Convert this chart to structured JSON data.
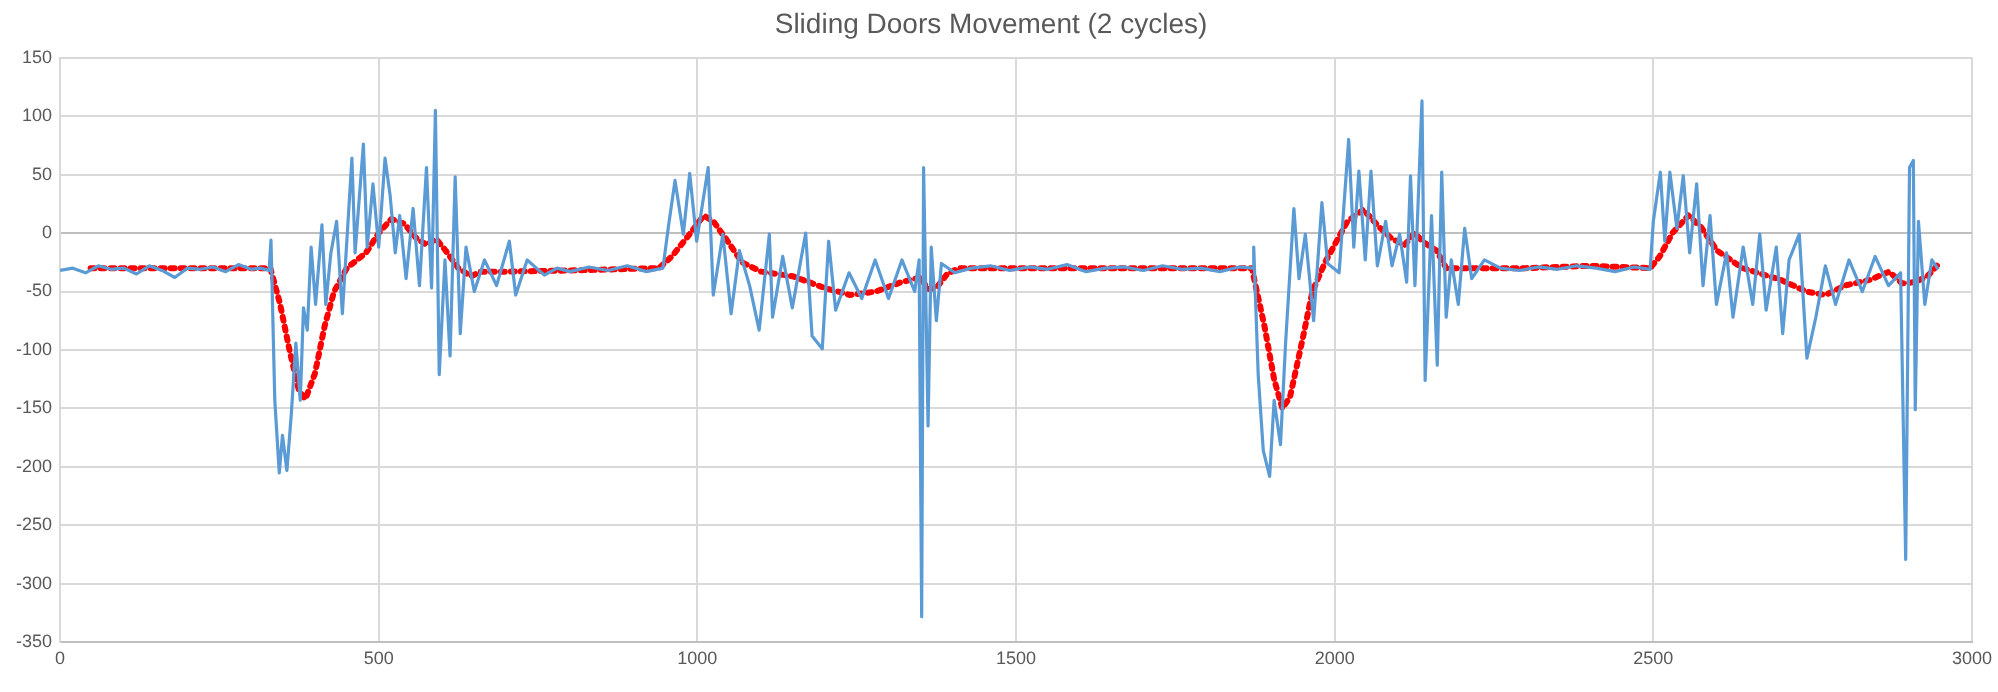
{
  "chart_data": {
    "type": "line",
    "title": "Sliding Doors Movement (2 cycles)",
    "xlim": [
      0,
      3000
    ],
    "xticks": [
      0,
      500,
      1000,
      1500,
      2000,
      2500,
      3000
    ],
    "ylim": [
      -350,
      150
    ],
    "yticks": [
      -350,
      -300,
      -250,
      -200,
      -150,
      -100,
      -50,
      0,
      50,
      100,
      150
    ],
    "grid": true,
    "legend": false,
    "marker": "none",
    "series": [
      {
        "color": "#5b9bd5",
        "line_style": "solid",
        "x": [
          0,
          20,
          40,
          60,
          80,
          100,
          120,
          140,
          160,
          180,
          200,
          220,
          240,
          260,
          280,
          300,
          315,
          328,
          331,
          337,
          344,
          349,
          356,
          363,
          370,
          377,
          382,
          388,
          394,
          401,
          411,
          417,
          425,
          434,
          443,
          450,
          458,
          463,
          476,
          482,
          491,
          500,
          510,
          518,
          526,
          533,
          543,
          554,
          564,
          575,
          583,
          589,
          595,
          604,
          612,
          620,
          628,
          637,
          650,
          666,
          685,
          705,
          715,
          733,
          760,
          780,
          800,
          830,
          860,
          890,
          920,
          946,
          955,
          965,
          978,
          988,
          999,
          1017,
          1025,
          1040,
          1053,
          1066,
          1082,
          1097,
          1113,
          1118,
          1134,
          1149,
          1170,
          1180,
          1196,
          1206,
          1217,
          1238,
          1258,
          1279,
          1300,
          1321,
          1341,
          1348,
          1352,
          1355,
          1362,
          1367,
          1375,
          1383,
          1404,
          1430,
          1460,
          1490,
          1520,
          1550,
          1580,
          1610,
          1640,
          1670,
          1700,
          1730,
          1760,
          1790,
          1820,
          1850,
          1871,
          1873,
          1880,
          1888,
          1898,
          1905,
          1915,
          1923,
          1936,
          1944,
          1954,
          1967,
          1980,
          1989,
          2007,
          2022,
          2030,
          2038,
          2048,
          2057,
          2067,
          2080,
          2090,
          2102,
          2113,
          2119,
          2126,
          2137,
          2142,
          2152,
          2161,
          2168,
          2175,
          2183,
          2194,
          2204,
          2215,
          2235,
          2260,
          2290,
          2320,
          2350,
          2380,
          2410,
          2440,
          2470,
          2495,
          2500,
          2511,
          2518,
          2526,
          2537,
          2547,
          2557,
          2568,
          2578,
          2589,
          2599,
          2615,
          2625,
          2641,
          2656,
          2667,
          2677,
          2693,
          2703,
          2713,
          2729,
          2741,
          2755,
          2770,
          2786,
          2807,
          2828,
          2848,
          2869,
          2888,
          2896,
          2902,
          2908,
          2911,
          2916,
          2926,
          2937,
          2947
        ],
        "values": [
          -32,
          -30,
          -34,
          -28,
          -31,
          -30,
          -35,
          -28,
          -32,
          -38,
          -30,
          -31,
          -29,
          -33,
          -27,
          -31,
          -30,
          -32,
          -6,
          -143,
          -205,
          -173,
          -203,
          -154,
          -94,
          -143,
          -64,
          -83,
          -12,
          -61,
          7,
          -61,
          -17,
          10,
          -69,
          -7,
          64,
          -17,
          76,
          -12,
          42,
          -12,
          64,
          32,
          -17,
          15,
          -39,
          21,
          -45,
          56,
          -47,
          105,
          -121,
          -23,
          -105,
          48,
          -86,
          -12,
          -50,
          -23,
          -45,
          -7,
          -53,
          -23,
          -36,
          -30,
          -33,
          -29,
          -32,
          -28,
          -33,
          -30,
          7,
          45,
          -1,
          51,
          -7,
          56,
          -53,
          -1,
          -69,
          -15,
          -45,
          -83,
          -1,
          -72,
          -20,
          -64,
          0,
          -88,
          -99,
          -7,
          -66,
          -34,
          -56,
          -23,
          -56,
          -23,
          -50,
          -23,
          -328,
          56,
          -165,
          -12,
          -75,
          -26,
          -34,
          -30,
          -28,
          -32,
          -29,
          -31,
          -27,
          -33,
          -30,
          -29,
          -32,
          -28,
          -31,
          -30,
          -33,
          -29,
          -30,
          -12,
          -121,
          -186,
          -208,
          -143,
          -181,
          -94,
          21,
          -39,
          -1,
          -75,
          26,
          -26,
          -34,
          80,
          -12,
          53,
          -23,
          53,
          -28,
          10,
          -28,
          -1,
          -42,
          49,
          -45,
          113,
          -126,
          15,
          -113,
          52,
          -72,
          -23,
          -61,
          4,
          -39,
          -23,
          -30,
          -32,
          -29,
          -31,
          -28,
          -30,
          -33,
          -29,
          -31,
          10,
          52,
          -7,
          52,
          4,
          49,
          -17,
          42,
          -45,
          15,
          -61,
          -17,
          -72,
          -12,
          -61,
          -1,
          -66,
          -12,
          -86,
          -23,
          -1,
          -107,
          -72,
          -28,
          -61,
          -23,
          -50,
          -20,
          -45,
          -34,
          -279,
          56,
          62,
          -151,
          10,
          -61,
          -23,
          -31
        ]
      },
      {
        "color": "#ff0000",
        "line_style": "dotted",
        "x": [
          48,
          200,
          330,
          345,
          360,
          375,
          385,
          400,
          415,
          430,
          450,
          480,
          500,
          520,
          540,
          560,
          575,
          590,
          605,
          625,
          645,
          660,
          700,
          800,
          940,
          960,
          985,
          1010,
          1025,
          1045,
          1070,
          1100,
          1150,
          1200,
          1240,
          1280,
          1320,
          1350,
          1362,
          1375,
          1392,
          1410,
          1500,
          1700,
          1870,
          1890,
          1905,
          1918,
          1930,
          1950,
          1965,
          1985,
          2000,
          2020,
          2045,
          2070,
          2090,
          2110,
          2125,
          2140,
          2160,
          2175,
          2200,
          2300,
          2400,
          2495,
          2510,
          2530,
          2555,
          2575,
          2600,
          2640,
          2700,
          2740,
          2770,
          2800,
          2840,
          2870,
          2890,
          2910,
          2930,
          2945
        ],
        "values": [
          -30,
          -30,
          -30,
          -60,
          -100,
          -135,
          -142,
          -120,
          -80,
          -50,
          -30,
          -17,
          0,
          12,
          8,
          -5,
          -10,
          -5,
          -15,
          -30,
          -37,
          -33,
          -33,
          -32,
          -30,
          -20,
          -3,
          15,
          10,
          -5,
          -25,
          -33,
          -37,
          -47,
          -53,
          -50,
          -42,
          -38,
          -48,
          -47,
          -35,
          -30,
          -30,
          -30,
          -30,
          -80,
          -125,
          -150,
          -140,
          -90,
          -50,
          -25,
          -10,
          10,
          20,
          5,
          -5,
          -10,
          0,
          -8,
          -15,
          -30,
          -30,
          -30,
          -28,
          -30,
          -20,
          0,
          15,
          5,
          -15,
          -30,
          -40,
          -50,
          -53,
          -45,
          -40,
          -33,
          -43,
          -42,
          -37,
          -28
        ]
      }
    ]
  }
}
